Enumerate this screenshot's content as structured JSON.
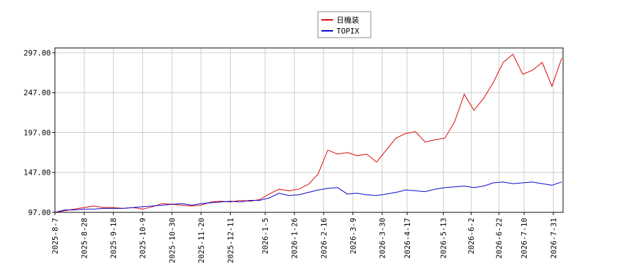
{
  "chart_data": {
    "type": "line",
    "x": [
      "2025-8-7",
      "2025-8-14",
      "2025-8-21",
      "2025-8-28",
      "2025-9-4",
      "2025-9-11",
      "2025-9-18",
      "2025-9-25",
      "2025-10-2",
      "2025-10-9",
      "2025-10-16",
      "2025-10-23",
      "2025-10-30",
      "2025-11-6",
      "2025-11-13",
      "2025-11-20",
      "2025-11-27",
      "2025-12-4",
      "2025-12-11",
      "2025-12-18",
      "2025-12-25",
      "2026-1-1",
      "2026-1-8",
      "2026-1-15",
      "2026-1-22",
      "2026-1-29",
      "2026-2-5",
      "2026-2-12",
      "2026-2-19",
      "2026-2-26",
      "2026-3-5",
      "2026-3-12",
      "2026-3-19",
      "2026-3-26",
      "2026-4-2",
      "2026-4-9",
      "2026-4-16",
      "2026-4-23",
      "2026-4-30",
      "2026-5-7",
      "2026-5-14",
      "2026-5-21",
      "2026-5-28",
      "2026-6-4",
      "2026-6-11",
      "2026-6-18",
      "2026-6-25",
      "2026-7-2",
      "2026-7-9",
      "2026-7-16",
      "2026-7-23",
      "2026-7-30",
      "2026-8-6"
    ],
    "series": [
      {
        "name": "日機装",
        "color": "#dd0000",
        "values": [
          97,
          99,
          101,
          103,
          105,
          103,
          103,
          102,
          103,
          101,
          104,
          108,
          107,
          106,
          105,
          106,
          110,
          111,
          110,
          112,
          111,
          113,
          120,
          126,
          124,
          126,
          132,
          145,
          175,
          170,
          172,
          168,
          170,
          160,
          175,
          190,
          196,
          198,
          185,
          188,
          190,
          210,
          245,
          225,
          240,
          260,
          285,
          295,
          270,
          275,
          285,
          255,
          290
        ]
      },
      {
        "name": "TOPIX",
        "color": "#0000cc",
        "values": [
          97,
          100,
          100,
          101,
          101,
          102,
          102,
          102,
          103,
          104,
          105,
          106,
          107,
          108,
          106,
          108,
          109,
          110,
          111,
          110,
          112,
          112,
          115,
          121,
          118,
          119,
          122,
          125,
          127,
          128,
          120,
          121,
          119,
          118,
          120,
          122,
          125,
          124,
          123,
          126,
          128,
          129,
          130,
          128,
          130,
          134,
          135,
          133,
          134,
          135,
          133,
          131,
          135
        ]
      }
    ],
    "xlim": [
      "2025-8-7",
      "2026-8-7"
    ],
    "xticks": [
      "2025-8-7",
      "2025-8-28",
      "2025-9-18",
      "2025-10-9",
      "2025-10-30",
      "2025-11-20",
      "2025-12-11",
      "2026-1-5",
      "2026-1-26",
      "2026-2-16",
      "2026-3-9",
      "2026-3-30",
      "2026-4-17",
      "2026-5-13",
      "2026-6-2",
      "2026-6-22",
      "2026-7-10",
      "2026-7-31"
    ],
    "ylim": [
      97,
      303
    ],
    "yticks": [
      {
        "value": 97,
        "label": "97.00"
      },
      {
        "value": 147,
        "label": "147.00"
      },
      {
        "value": 197,
        "label": "197.00"
      },
      {
        "value": 247,
        "label": "247.00"
      },
      {
        "value": 297,
        "label": "297.00"
      }
    ],
    "grid": true,
    "legend": "top"
  }
}
